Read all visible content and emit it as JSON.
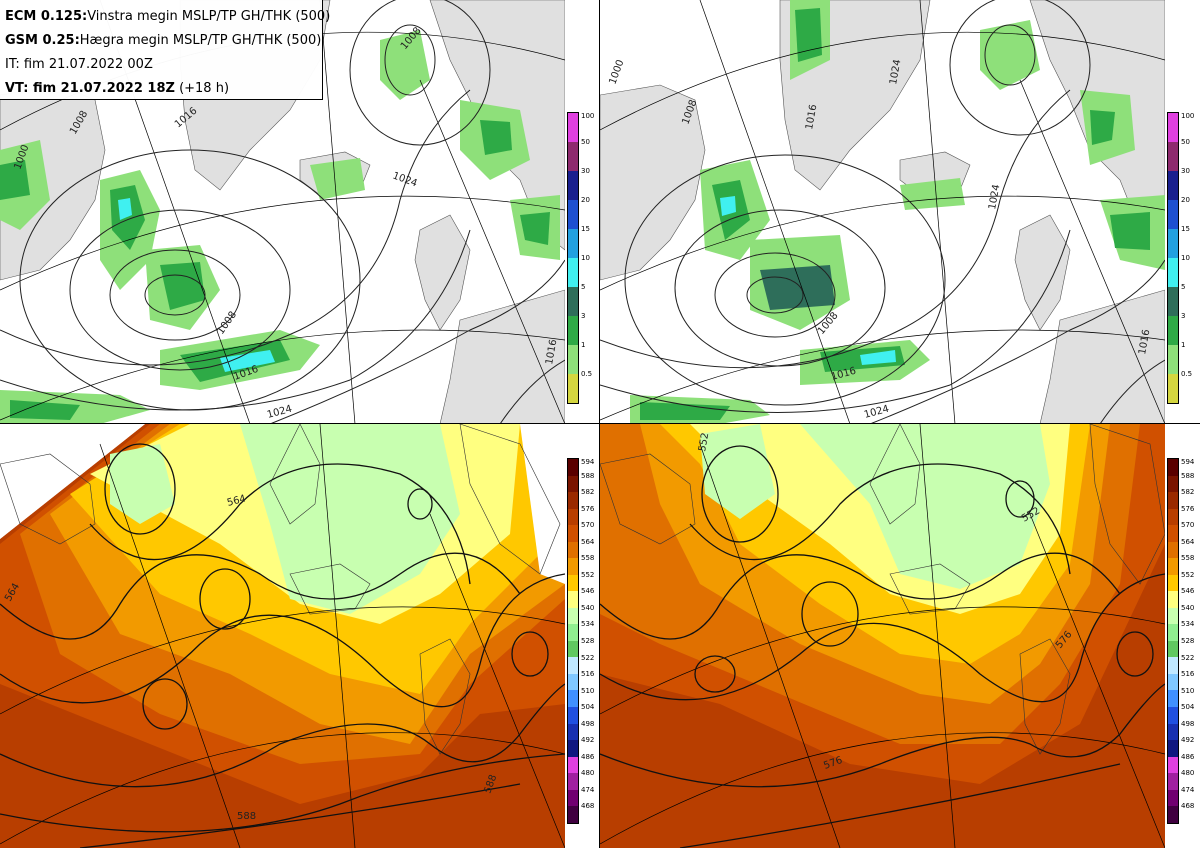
{
  "header": {
    "line1_bold": "ECM 0.125:",
    "line1_rest": "Vinstra megin MSLP/TP GH/THK (500)",
    "line2_bold": "GSM 0.25:",
    "line2_rest": "Hægra megin MSLP/TP GH/THK (500)",
    "line3": "IT: fim 21.07.2022 00Z",
    "line4_bold": "VT: fim 21.07.2022 18Z",
    "line4_rest": " (+18 h)"
  },
  "panels": {
    "tl": {
      "contour_labels": [
        "1000",
        "1008",
        "1016",
        "1024",
        "1008",
        "1016",
        "1024",
        "1008",
        "1016"
      ]
    },
    "tr": {
      "contour_labels": [
        "1000",
        "1008",
        "1024",
        "1016",
        "1024",
        "1008",
        "1016",
        "1024",
        "1016"
      ]
    },
    "bl": {
      "contour_labels": [
        "564",
        "564",
        "588",
        "588"
      ]
    },
    "br": {
      "contour_labels": [
        "552",
        "552",
        "576",
        "576"
      ]
    }
  },
  "colorbars": {
    "precip": {
      "ticks": [
        "100",
        "50",
        "30",
        "20",
        "15",
        "10",
        "5",
        "3",
        "1",
        "0.5"
      ],
      "colors": [
        "#e040e0",
        "#8e2a6e",
        "#1a1f8e",
        "#1e50d0",
        "#22a0e0",
        "#40f0f0",
        "#2e6e5a",
        "#2eaa46",
        "#8ee07a",
        "#d4d640"
      ]
    },
    "height": {
      "ticks": [
        "594",
        "588",
        "582",
        "576",
        "570",
        "564",
        "558",
        "552",
        "546",
        "540",
        "534",
        "528",
        "522",
        "516",
        "510",
        "504",
        "498",
        "492",
        "486",
        "480",
        "474",
        "468"
      ],
      "colors": [
        "#5a0000",
        "#7a1400",
        "#9a2a00",
        "#b83e00",
        "#d05000",
        "#e07000",
        "#f29a00",
        "#ffc800",
        "#ffff80",
        "#c8ffb0",
        "#90ee90",
        "#60c860",
        "#c0e8ff",
        "#80c8ff",
        "#4090ff",
        "#2050e0",
        "#1830b0",
        "#101880",
        "#e040e0",
        "#a020a0",
        "#700070",
        "#400040"
      ]
    }
  }
}
